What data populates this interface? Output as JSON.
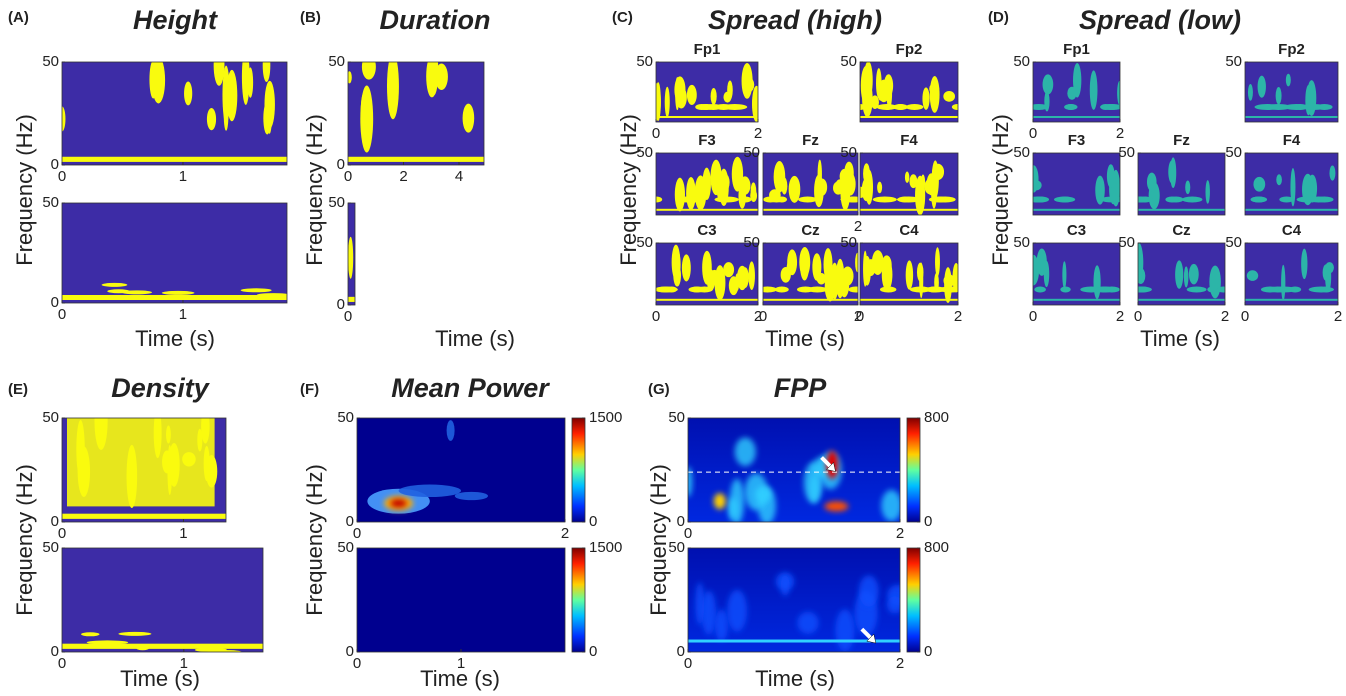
{
  "figure": {
    "panels": [
      {
        "letter": "(A)",
        "title": "Height",
        "ylabel": "Frequency (Hz)",
        "xlabel": "Time (s)",
        "plots": [
          {
            "xlim": [
              0,
              1.86
            ],
            "ylim": [
              0,
              50
            ],
            "xticks": [
              0,
              1
            ],
            "yticks": [
              0,
              50
            ]
          },
          {
            "xlim": [
              0,
              1.86
            ],
            "ylim": [
              0,
              50
            ],
            "xticks": [
              0,
              1
            ],
            "yticks": [
              0,
              50
            ]
          }
        ]
      },
      {
        "letter": "(B)",
        "title": "Duration",
        "ylabel": "Frequency (Hz)",
        "xlabel": "Time (s)",
        "plots": [
          {
            "xlim": [
              0,
              4.9
            ],
            "ylim": [
              0,
              50
            ],
            "xticks": [
              0,
              2,
              4
            ],
            "yticks": [
              0,
              50
            ]
          },
          {
            "xlim": [
              0,
              0.1
            ],
            "ylim": [
              0,
              50
            ],
            "xticks": [
              0
            ],
            "yticks": [
              0,
              50
            ]
          }
        ]
      },
      {
        "letter": "(C)",
        "title": "Spread (high)",
        "ylabel": "Frequency (Hz)",
        "xlabel": "Time (s)",
        "plots": [
          {
            "title": "Fp1",
            "xlim": [
              0,
              2
            ],
            "ylim": [
              0,
              50
            ],
            "xticks": [
              0,
              2
            ],
            "yticks": [
              50
            ]
          },
          {
            "title": "Fp2",
            "xlim": [
              0,
              2
            ],
            "ylim": [
              0,
              50
            ],
            "xticks": [],
            "yticks": [
              50
            ]
          },
          {
            "title": "F3",
            "xlim": [
              0,
              2
            ],
            "ylim": [
              0,
              50
            ],
            "xticks": [],
            "yticks": [
              50
            ]
          },
          {
            "title": "Fz",
            "xlim": [
              0,
              2
            ],
            "ylim": [
              0,
              50
            ],
            "xticks": [
              2
            ],
            "yticks": [
              50
            ]
          },
          {
            "title": "F4",
            "xlim": [
              0,
              2
            ],
            "ylim": [
              0,
              50
            ],
            "xticks": [],
            "yticks": [
              50
            ]
          },
          {
            "title": "C3",
            "xlim": [
              0,
              2
            ],
            "ylim": [
              0,
              50
            ],
            "xticks": [
              0,
              2
            ],
            "yticks": [
              50
            ]
          },
          {
            "title": "Cz",
            "xlim": [
              0,
              2
            ],
            "ylim": [
              0,
              50
            ],
            "xticks": [
              0,
              2
            ],
            "yticks": [
              50
            ]
          },
          {
            "title": "C4",
            "xlim": [
              0,
              2
            ],
            "ylim": [
              0,
              50
            ],
            "xticks": [
              0,
              2
            ],
            "yticks": [
              50
            ]
          }
        ]
      },
      {
        "letter": "(D)",
        "title": "Spread (low)",
        "ylabel": "Frequency (Hz)",
        "xlabel": "Time (s)",
        "plots": [
          {
            "title": "Fp1",
            "xlim": [
              0,
              2
            ],
            "ylim": [
              0,
              50
            ],
            "xticks": [
              0,
              2
            ],
            "yticks": [
              50
            ]
          },
          {
            "title": "Fp2",
            "xlim": [
              0,
              2
            ],
            "ylim": [
              0,
              50
            ],
            "xticks": [],
            "yticks": [
              50
            ]
          },
          {
            "title": "F3",
            "xlim": [
              0,
              2
            ],
            "ylim": [
              0,
              50
            ],
            "xticks": [],
            "yticks": [
              50
            ]
          },
          {
            "title": "Fz",
            "xlim": [
              0,
              2
            ],
            "ylim": [
              0,
              50
            ],
            "xticks": [],
            "yticks": [
              50
            ]
          },
          {
            "title": "F4",
            "xlim": [
              0,
              2
            ],
            "ylim": [
              0,
              50
            ],
            "xticks": [],
            "yticks": [
              50
            ]
          },
          {
            "title": "C3",
            "xlim": [
              0,
              2
            ],
            "ylim": [
              0,
              50
            ],
            "xticks": [
              0,
              2
            ],
            "yticks": [
              50
            ]
          },
          {
            "title": "Cz",
            "xlim": [
              0,
              2
            ],
            "ylim": [
              0,
              50
            ],
            "xticks": [
              0,
              2
            ],
            "yticks": [
              50
            ]
          },
          {
            "title": "C4",
            "xlim": [
              0,
              2
            ],
            "ylim": [
              0,
              50
            ],
            "xticks": [
              0,
              2
            ],
            "yticks": [
              50
            ]
          }
        ]
      },
      {
        "letter": "(E)",
        "title": "Density",
        "ylabel": "Frequency (Hz)",
        "xlabel": "Time (s)",
        "plots": [
          {
            "xlim": [
              0,
              1.35
            ],
            "ylim": [
              0,
              50
            ],
            "xticks": [
              0,
              1
            ],
            "yticks": [
              0,
              50
            ]
          },
          {
            "xlim": [
              0,
              1.65
            ],
            "ylim": [
              0,
              50
            ],
            "xticks": [
              0,
              1
            ],
            "yticks": [
              0,
              50
            ]
          }
        ]
      },
      {
        "letter": "(F)",
        "title": "Mean Power",
        "ylabel": "Frequency (Hz)",
        "xlabel": "Time (s)",
        "plots": [
          {
            "xlim": [
              0,
              2
            ],
            "ylim": [
              0,
              50
            ],
            "xticks": [
              0,
              2
            ],
            "yticks": [
              0,
              50
            ],
            "colorbar": {
              "lim": [
                0,
                1500
              ],
              "ticks": [
                0,
                1500
              ]
            }
          },
          {
            "xlim": [
              0,
              2
            ],
            "ylim": [
              0,
              50
            ],
            "xticks": [
              0,
              1
            ],
            "yticks": [
              0,
              50
            ],
            "colorbar": {
              "lim": [
                0,
                1500
              ],
              "ticks": [
                0,
                1500
              ]
            }
          }
        ]
      },
      {
        "letter": "(G)",
        "title": "FPP",
        "ylabel": "Frequency (Hz)",
        "xlabel": "Time (s)",
        "plots": [
          {
            "xlim": [
              0,
              2
            ],
            "ylim": [
              0,
              50
            ],
            "xticks": [
              0,
              2
            ],
            "yticks": [
              0,
              50
            ],
            "colorbar": {
              "lim": [
                0,
                800
              ],
              "ticks": [
                0,
                800
              ]
            }
          },
          {
            "xlim": [
              0,
              2
            ],
            "ylim": [
              0,
              50
            ],
            "xticks": [
              0,
              2
            ],
            "yticks": [
              0,
              50
            ],
            "colorbar": {
              "lim": [
                0,
                800
              ],
              "ticks": [
                0,
                800
              ]
            }
          }
        ]
      }
    ]
  }
}
